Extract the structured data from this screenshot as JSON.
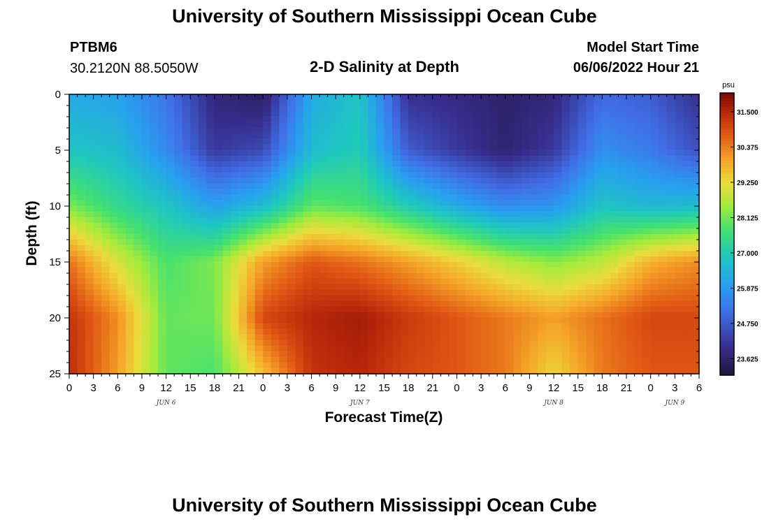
{
  "header": {
    "title": "University of Southern Mississippi Ocean Cube",
    "station_id": "PTBM6",
    "station_coords": "30.2120N  88.5050W",
    "plot_title": "2-D Salinity at Depth",
    "model_start_label": "Model Start Time",
    "model_start_value": "06/06/2022 Hour 21"
  },
  "footer": {
    "title": "University of Southern Mississippi Ocean Cube"
  },
  "chart_data": {
    "type": "heatmap",
    "title": "2-D Salinity at Depth",
    "xlabel": "Forecast Time(Z)",
    "ylabel": "Depth (ft)",
    "x_tick_labels": [
      "0",
      "3",
      "6",
      "9",
      "12",
      "15",
      "18",
      "21",
      "0",
      "3",
      "6",
      "9",
      "12",
      "15",
      "18",
      "21",
      "0",
      "3",
      "6",
      "9",
      "12",
      "15",
      "18",
      "21",
      "0",
      "3",
      "6"
    ],
    "day_labels": [
      {
        "label": "JUN 6",
        "hour": 12
      },
      {
        "label": "JUN 7",
        "hour": 36
      },
      {
        "label": "JUN 8",
        "hour": 60
      },
      {
        "label": "JUN 9",
        "hour": 75
      }
    ],
    "x_range_hours": [
      0,
      78
    ],
    "y_ticks": [
      0,
      5,
      10,
      15,
      20,
      25
    ],
    "y_range_ft": [
      0,
      25
    ],
    "y_inverted": true,
    "colorbar": {
      "unit": "psu",
      "min": 23.1,
      "max": 32.1,
      "tick_values": [
        31.5,
        30.375,
        29.25,
        28.125,
        27.0,
        25.875,
        24.75,
        23.625
      ],
      "tick_labels": [
        "31.500",
        "30.375",
        "29.250",
        "28.125",
        "27.000",
        "25.875",
        "24.750",
        "23.625"
      ]
    },
    "salinity_grid": {
      "hours": [
        0,
        6,
        12,
        18,
        24,
        30,
        36,
        42,
        48,
        54,
        60,
        66,
        72,
        78
      ],
      "depths_ft": [
        0,
        5,
        10,
        15,
        20,
        25
      ],
      "values_psu": [
        [
          26.2,
          26.0,
          25.2,
          23.8,
          23.5,
          26.2,
          26.8,
          24.0,
          23.9,
          23.6,
          23.8,
          25.0,
          24.8,
          24.0
        ],
        [
          26.8,
          26.6,
          25.6,
          24.2,
          24.5,
          26.6,
          27.0,
          24.8,
          24.2,
          23.7,
          24.2,
          25.7,
          25.3,
          24.6
        ],
        [
          28.2,
          27.4,
          26.8,
          26.0,
          26.6,
          28.0,
          27.8,
          27.0,
          26.2,
          25.6,
          25.8,
          26.8,
          26.5,
          26.6
        ],
        [
          30.5,
          29.0,
          27.8,
          28.2,
          30.0,
          30.8,
          30.5,
          30.0,
          29.4,
          28.7,
          28.3,
          28.7,
          29.8,
          30.2
        ],
        [
          31.3,
          30.2,
          28.0,
          28.1,
          31.0,
          31.5,
          31.7,
          31.2,
          30.8,
          30.4,
          30.0,
          30.5,
          31.0,
          31.0
        ],
        [
          31.4,
          30.0,
          28.0,
          27.8,
          29.6,
          31.3,
          31.5,
          31.0,
          30.8,
          30.4,
          29.3,
          30.4,
          30.8,
          30.8
        ]
      ]
    }
  }
}
